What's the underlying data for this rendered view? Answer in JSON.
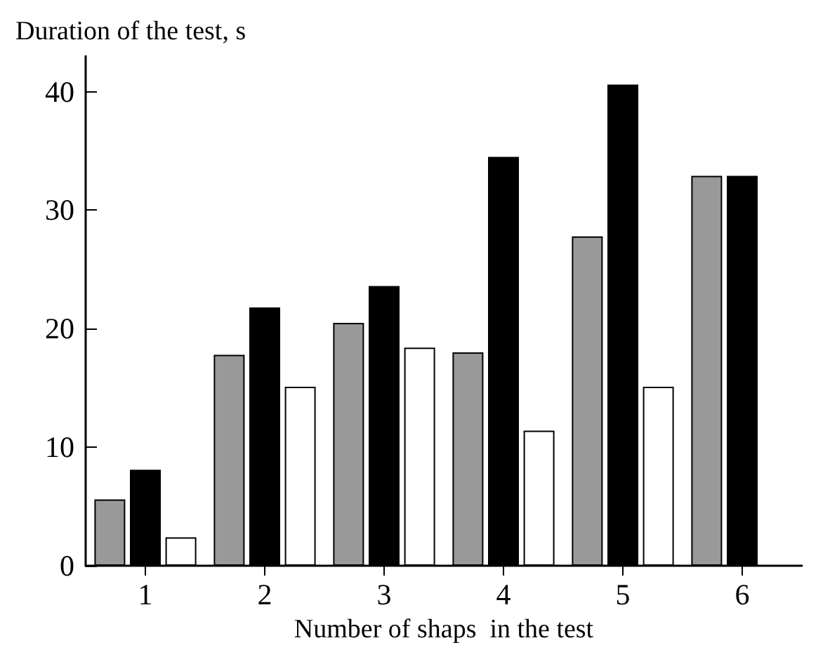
{
  "chart_data": {
    "type": "bar",
    "ylabel": "Duration of the test, s",
    "xlabel": "Number of shaps  in the test",
    "categories": [
      "1",
      "2",
      "3",
      "4",
      "5",
      "6"
    ],
    "series": [
      {
        "color": "#999999",
        "values": [
          5.6,
          17.8,
          20.5,
          18.0,
          27.8,
          32.9
        ]
      },
      {
        "color": "#000000",
        "values": [
          8.1,
          21.8,
          23.6,
          34.5,
          40.6,
          32.9
        ]
      },
      {
        "color": "#ffffff",
        "values": [
          2.4,
          15.1,
          18.4,
          11.4,
          15.1,
          null
        ]
      }
    ],
    "ylim": [
      0,
      43
    ],
    "yticks": [
      0,
      10,
      20,
      30,
      40
    ],
    "grid": false
  }
}
